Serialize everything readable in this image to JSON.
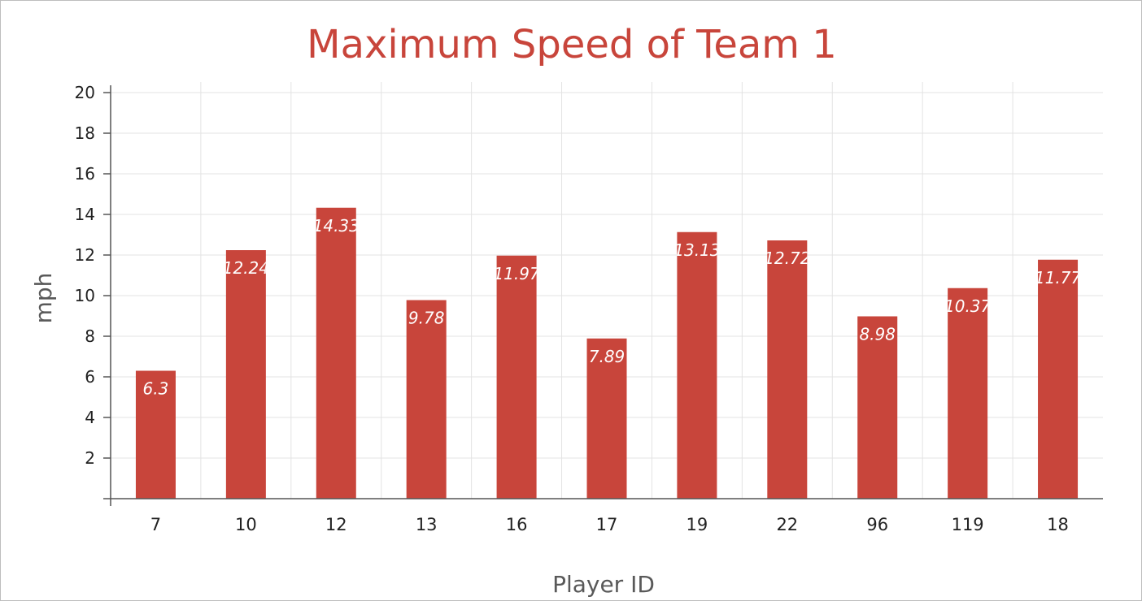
{
  "chart_data": {
    "type": "bar",
    "title": "Maximum Speed of Team 1",
    "xlabel": "Player ID",
    "ylabel": "mph",
    "categories": [
      "7",
      "10",
      "12",
      "13",
      "16",
      "17",
      "19",
      "22",
      "96",
      "119",
      "18"
    ],
    "values": [
      6.3,
      12.24,
      14.33,
      9.78,
      11.97,
      7.89,
      13.13,
      12.72,
      8.98,
      10.37,
      11.77
    ],
    "data_labels": [
      "6.3",
      "12.24",
      "14.33",
      "9.78",
      "11.97",
      "7.89",
      "13.13",
      "12.72",
      "8.98",
      "10.37",
      "11.77"
    ],
    "ylim": [
      0,
      20
    ],
    "yticks": [
      2,
      4,
      6,
      8,
      10,
      12,
      14,
      16,
      18,
      20
    ],
    "ytick_labels": [
      "2",
      "4",
      "6",
      "8",
      "10",
      "12",
      "14",
      "16",
      "18",
      "20"
    ],
    "grid": true,
    "legend": "none",
    "colors": {
      "bar": "#c8453b",
      "title": "#c8453b",
      "axis_label": "#595959",
      "grid": "#e3e3e3",
      "axis": "#555555",
      "tick_label": "#222222",
      "data_label": "#ffffff"
    }
  }
}
